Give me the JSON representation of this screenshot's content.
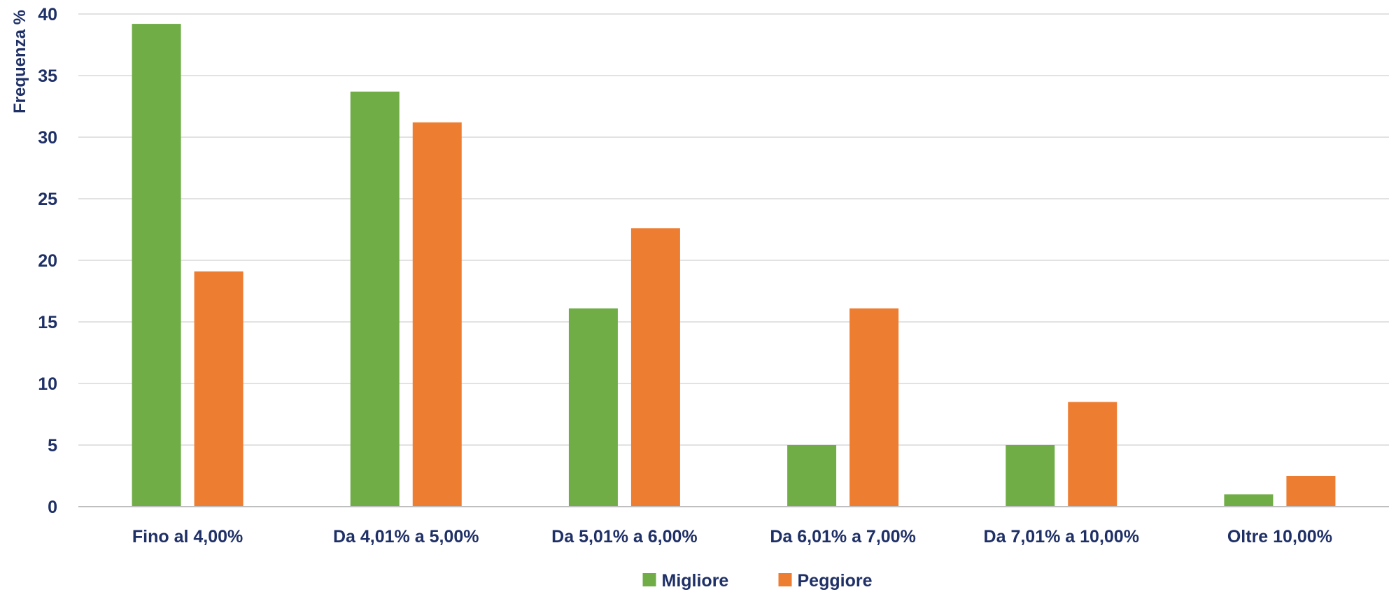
{
  "chart_data": {
    "type": "bar",
    "title": "",
    "xlabel": "",
    "ylabel": "Frequenza %",
    "categories": [
      "Fino al 4,00%",
      "Da 4,01% a 5,00%",
      "Da 5,01% a 6,00%",
      "Da 6,01% a 7,00%",
      "Da 7,01% a 10,00%",
      "Oltre 10,00%"
    ],
    "series": [
      {
        "name": "Migliore",
        "color": "#70AD47",
        "values": [
          39.2,
          33.7,
          16.1,
          5.0,
          5.0,
          1.0
        ]
      },
      {
        "name": "Peggiore",
        "color": "#ED7D31",
        "values": [
          19.1,
          31.2,
          22.6,
          16.1,
          8.5,
          2.5
        ]
      }
    ],
    "ylim": [
      0,
      40
    ],
    "yticks": [
      "0",
      "5",
      "10",
      "15",
      "20",
      "25",
      "30",
      "35",
      "40"
    ],
    "grid": true,
    "legend_position": "bottom",
    "text_color": "#1F3067",
    "grid_color": "#D9D9D9"
  }
}
